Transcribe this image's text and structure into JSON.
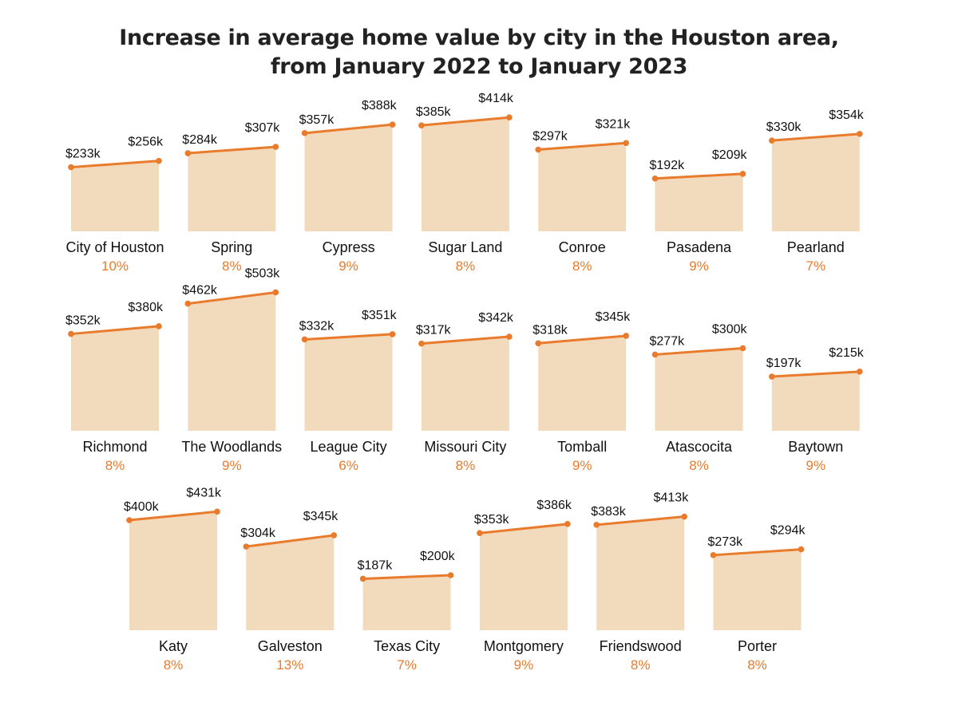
{
  "title_lines": [
    "Increase in average home value by city in the Houston area,",
    "from January 2022 to January 2023"
  ],
  "colors": {
    "line": "#e97b2c",
    "area": "#f2dabd",
    "text": "#111111",
    "percent": "#e97b2c"
  },
  "chart_data": {
    "type": "area",
    "title": "Increase in average home value by city in the Houston area, from January 2022 to January 2023",
    "x": [
      "January 2022",
      "January 2023"
    ],
    "series": [
      {
        "name": "City of Houston",
        "start_label": "$233k",
        "end_label": "$256k",
        "values": [
          233,
          256
        ],
        "change": "10%"
      },
      {
        "name": "Spring",
        "start_label": "$284k",
        "end_label": "$307k",
        "values": [
          284,
          307
        ],
        "change": "8%"
      },
      {
        "name": "Cypress",
        "start_label": "$357k",
        "end_label": "$388k",
        "values": [
          357,
          388
        ],
        "change": "9%"
      },
      {
        "name": "Sugar Land",
        "start_label": "$385k",
        "end_label": "$414k",
        "values": [
          385,
          414
        ],
        "change": "8%"
      },
      {
        "name": "Conroe",
        "start_label": "$297k",
        "end_label": "$321k",
        "values": [
          297,
          321
        ],
        "change": "8%"
      },
      {
        "name": "Pasadena",
        "start_label": "$192k",
        "end_label": "$209k",
        "values": [
          192,
          209
        ],
        "change": "9%"
      },
      {
        "name": "Pearland",
        "start_label": "$330k",
        "end_label": "$354k",
        "values": [
          330,
          354
        ],
        "change": "7%"
      },
      {
        "name": "Richmond",
        "start_label": "$352k",
        "end_label": "$380k",
        "values": [
          352,
          380
        ],
        "change": "8%"
      },
      {
        "name": "The Woodlands",
        "start_label": "$462k",
        "end_label": "$503k",
        "values": [
          462,
          503
        ],
        "change": "9%"
      },
      {
        "name": "League City",
        "start_label": "$332k",
        "end_label": "$351k",
        "values": [
          332,
          351
        ],
        "change": "6%"
      },
      {
        "name": "Missouri City",
        "start_label": "$317k",
        "end_label": "$342k",
        "values": [
          317,
          342
        ],
        "change": "8%"
      },
      {
        "name": "Tomball",
        "start_label": "$318k",
        "end_label": "$345k",
        "values": [
          318,
          345
        ],
        "change": "9%"
      },
      {
        "name": "Atascocita",
        "start_label": "$277k",
        "end_label": "$300k",
        "values": [
          277,
          300
        ],
        "change": "8%"
      },
      {
        "name": "Baytown",
        "start_label": "$197k",
        "end_label": "$215k",
        "values": [
          197,
          215
        ],
        "change": "9%"
      },
      {
        "name": "Katy",
        "start_label": "$400k",
        "end_label": "$431k",
        "values": [
          400,
          431
        ],
        "change": "8%"
      },
      {
        "name": "Galveston",
        "start_label": "$304k",
        "end_label": "$345k",
        "values": [
          304,
          345
        ],
        "change": "13%"
      },
      {
        "name": "Texas City",
        "start_label": "$187k",
        "end_label": "$200k",
        "values": [
          187,
          200
        ],
        "change": "7%"
      },
      {
        "name": "Montgomery",
        "start_label": "$353k",
        "end_label": "$386k",
        "values": [
          353,
          386
        ],
        "change": "9%"
      },
      {
        "name": "Friendswood",
        "start_label": "$383k",
        "end_label": "$413k",
        "values": [
          383,
          413
        ],
        "change": "8%"
      },
      {
        "name": "Porter",
        "start_label": "$273k",
        "end_label": "$294k",
        "values": [
          273,
          294
        ],
        "change": "8%"
      }
    ],
    "ylim": [
      0,
      550
    ],
    "grid": false,
    "legend": "none"
  }
}
